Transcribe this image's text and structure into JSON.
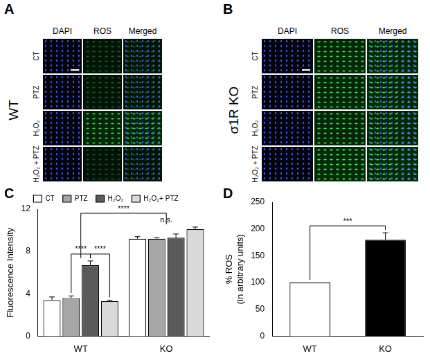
{
  "panels": [
    {
      "label": "A",
      "group": "WT",
      "columns": [
        "DAPI",
        "ROS",
        "Merged"
      ],
      "rows": [
        "CT",
        "PTZ",
        "H₂O₂",
        "H₂O₂ + PTZ"
      ]
    },
    {
      "label": "B",
      "group": "σ1R KO",
      "columns": [
        "DAPI",
        "ROS",
        "Merged"
      ],
      "rows": [
        "CT",
        "PTZ",
        "H₂O₂",
        "H₂O₂ + PTZ"
      ]
    }
  ],
  "chart_data": [
    {
      "panel": "C",
      "type": "bar",
      "categories": [
        "WT",
        "KO"
      ],
      "series": [
        {
          "name": "CT",
          "color": "#ffffff",
          "values": [
            3.4,
            9.2
          ],
          "errors": [
            0.3,
            0.2
          ]
        },
        {
          "name": "PTZ",
          "color": "#a6a6a6",
          "values": [
            3.6,
            9.2
          ],
          "errors": [
            0.2,
            0.1
          ]
        },
        {
          "name": "H₂O₂",
          "color": "#5a5a5a",
          "values": [
            6.7,
            9.3
          ],
          "errors": [
            0.4,
            0.35
          ]
        },
        {
          "name": "H₂O₂+ PTZ",
          "color": "#d9d9d9",
          "values": [
            3.3,
            10.1
          ],
          "errors": [
            0.1,
            0.2
          ]
        }
      ],
      "y_label": "Fluorescence Intensity",
      "ylim": [
        0,
        12
      ],
      "yticks": [
        0,
        4,
        8,
        12
      ],
      "grid": false,
      "legend": "top",
      "annotations": [
        {
          "text": "****",
          "from": [
            "WT",
            "PTZ"
          ],
          "to": [
            "WT",
            "H₂O₂"
          ]
        },
        {
          "text": "****",
          "from": [
            "WT",
            "H₂O₂"
          ],
          "to": [
            "WT",
            "H₂O₂+ PTZ"
          ]
        },
        {
          "text": "n.s.",
          "over": "KO"
        },
        {
          "text": "****",
          "from": "WT",
          "to": "KO"
        }
      ]
    },
    {
      "panel": "D",
      "type": "bar",
      "categories": [
        "WT",
        "KO"
      ],
      "values": [
        100,
        180
      ],
      "errors": [
        null,
        13
      ],
      "colors": [
        "#ffffff",
        "#000000"
      ],
      "y_label": [
        "% ROS",
        "(in arbitrary units)"
      ],
      "ylim": [
        0,
        250
      ],
      "yticks": [
        0,
        50,
        100,
        150,
        200,
        250
      ],
      "grid": false,
      "annotations": [
        {
          "text": "***",
          "from": "WT",
          "to": "KO"
        }
      ]
    }
  ]
}
